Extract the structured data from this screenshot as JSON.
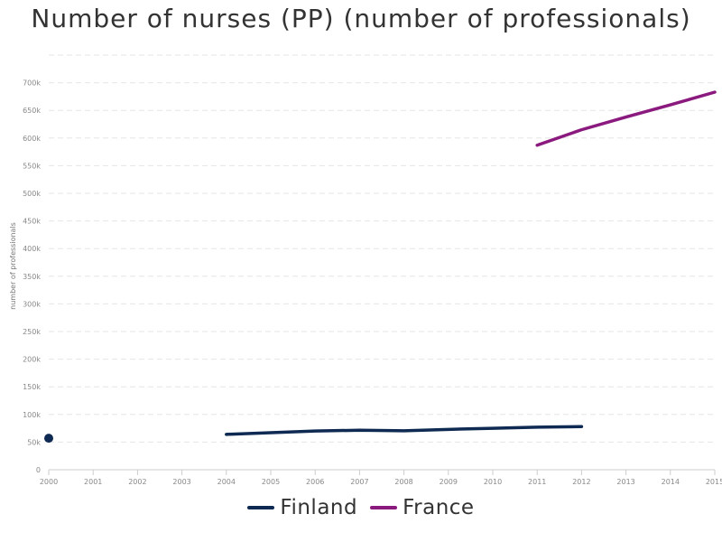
{
  "chart_data": {
    "type": "line",
    "title": "Number of nurses (PP) (number of professionals)",
    "xlabel": "",
    "ylabel": "number of professionals",
    "categories": [
      "2000",
      "2001",
      "2002",
      "2003",
      "2004",
      "2005",
      "2006",
      "2007",
      "2008",
      "2009",
      "2010",
      "2011",
      "2012",
      "2013",
      "2014",
      "2015"
    ],
    "yticks": [
      "0",
      "50k",
      "100k",
      "150k",
      "200k",
      "250k",
      "300k",
      "350k",
      "400k",
      "450k",
      "500k",
      "550k",
      "600k",
      "650k",
      "700k"
    ],
    "ylim": [
      0,
      750000
    ],
    "grid": true,
    "legend_position": "bottom-center",
    "series": [
      {
        "name": "Finland",
        "color": "#0f2a52",
        "values": [
          57000,
          null,
          null,
          null,
          64000,
          67000,
          70000,
          71500,
          70500,
          73000,
          75000,
          77000,
          78000,
          null,
          null,
          null
        ]
      },
      {
        "name": "France",
        "color": "#8b1a7e",
        "values": [
          null,
          null,
          null,
          null,
          null,
          null,
          null,
          null,
          null,
          null,
          null,
          587000,
          615000,
          638000,
          660000,
          683000
        ]
      }
    ]
  }
}
